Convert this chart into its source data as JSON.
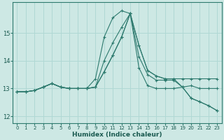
{
  "xlabel": "Humidex (Indice chaleur)",
  "background_color": "#cde8e4",
  "grid_color": "#b0d8d4",
  "line_color": "#2d7a6e",
  "xlim": [
    -0.5,
    23.5
  ],
  "ylim": [
    11.75,
    16.1
  ],
  "yticks": [
    12,
    13,
    14,
    15
  ],
  "xticks": [
    0,
    1,
    2,
    3,
    4,
    5,
    6,
    7,
    8,
    9,
    10,
    11,
    12,
    13,
    14,
    15,
    16,
    17,
    18,
    19,
    20,
    21,
    22,
    23
  ],
  "series": [
    {
      "x": [
        0,
        1,
        2,
        3,
        4,
        5,
        6,
        7,
        8,
        9,
        10,
        11,
        12,
        13,
        14,
        15,
        16,
        17,
        18,
        19,
        20,
        21,
        22,
        23
      ],
      "y": [
        12.88,
        12.88,
        12.93,
        13.05,
        13.18,
        13.05,
        13.0,
        13.0,
        13.0,
        13.05,
        13.6,
        14.2,
        14.85,
        15.7,
        13.75,
        13.1,
        13.0,
        13.0,
        13.0,
        13.05,
        13.1,
        13.0,
        13.0,
        13.0
      ]
    },
    {
      "x": [
        0,
        1,
        2,
        3,
        4,
        5,
        6,
        7,
        8,
        9,
        10,
        11,
        12,
        13,
        14,
        15,
        16,
        17,
        18,
        19,
        20,
        21,
        22,
        23
      ],
      "y": [
        12.88,
        12.88,
        12.93,
        13.05,
        13.18,
        13.05,
        13.0,
        13.0,
        13.0,
        13.05,
        13.6,
        14.2,
        14.85,
        15.7,
        14.55,
        13.65,
        13.45,
        13.35,
        13.35,
        13.35,
        13.35,
        13.35,
        13.35,
        13.35
      ]
    },
    {
      "x": [
        0,
        1,
        2,
        3,
        4,
        5,
        6,
        7,
        8,
        9,
        10,
        11,
        12,
        13,
        14,
        15,
        16,
        17,
        18,
        19,
        20,
        21,
        22,
        23
      ],
      "y": [
        12.88,
        12.88,
        12.93,
        13.05,
        13.18,
        13.05,
        13.0,
        13.0,
        13.0,
        13.35,
        14.85,
        15.55,
        15.8,
        15.7,
        14.15,
        13.5,
        13.3,
        13.3,
        13.3,
        13.05,
        12.65,
        12.52,
        12.38,
        12.2
      ]
    },
    {
      "x": [
        0,
        1,
        2,
        3,
        4,
        5,
        6,
        7,
        8,
        9,
        10,
        11,
        12,
        13,
        14,
        15,
        16,
        17,
        18,
        19,
        20,
        21,
        22,
        23
      ],
      "y": [
        12.88,
        12.88,
        12.93,
        13.05,
        13.18,
        13.05,
        13.0,
        13.0,
        13.0,
        13.05,
        14.0,
        14.65,
        15.2,
        15.7,
        14.55,
        13.65,
        13.45,
        13.35,
        13.35,
        13.05,
        12.65,
        12.52,
        12.38,
        12.2
      ]
    }
  ]
}
